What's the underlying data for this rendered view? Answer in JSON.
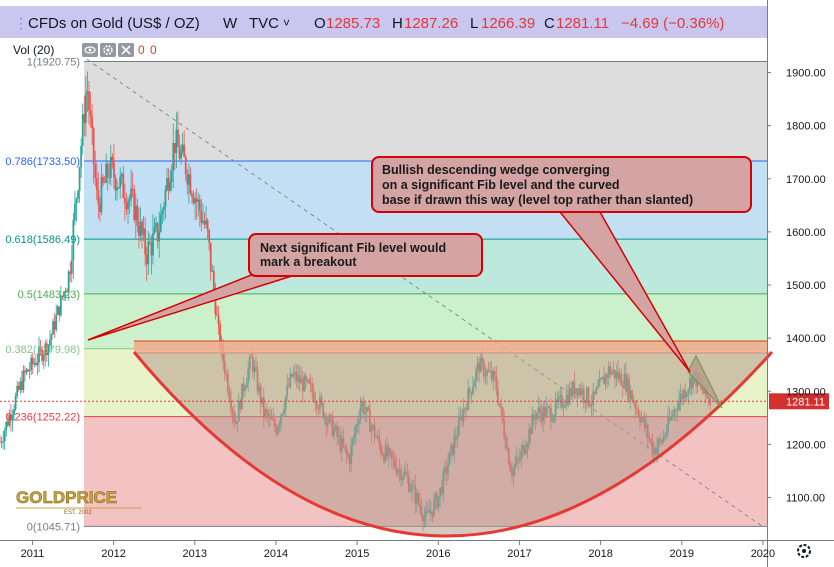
{
  "header": {
    "symbol": "CFDs on Gold (US$ / OZ)",
    "interval": "W",
    "source": "TVC",
    "source_chevron": "˅",
    "o_label": "O",
    "o_value": "1285.73",
    "h_label": "H",
    "h_value": "1287.26",
    "l_label": "L",
    "l_value": "1266.39",
    "c_label": "C",
    "c_value": "1281.11",
    "change": "−4.69 (−0.36%)",
    "volume_label": "Vol (20)",
    "volume_values": [
      "0",
      "0"
    ]
  },
  "icons": [
    "eye-icon",
    "gear-icon",
    "close-icon"
  ],
  "colors": {
    "header_band": "#c9c6f0",
    "down_candle": "#ef5350",
    "up_candle": "#26a69a",
    "wedge_line": "#e53935",
    "price_badge": "#d32f2f",
    "bowl": "#e53935",
    "resistance_band": "#f4a98c"
  },
  "annotations": {
    "note_1_lines": [
      "Bullish descending wedge converging",
      "on a significant Fib level and the curved",
      "base if drawn this way (level top rather than slanted)"
    ],
    "note_2_lines": [
      "Next significant Fib level would",
      "mark a breakout"
    ]
  },
  "logo": {
    "brand": "GOLDPRICE",
    "est": "EST. 2002"
  },
  "current_price_label": "1281.11",
  "chart_data": {
    "type": "candlestick",
    "title": "CFDs on Gold (US$ / OZ)",
    "interval": "W",
    "x_ticks": [
      "2011",
      "2012",
      "2013",
      "2014",
      "2015",
      "2016",
      "2017",
      "2018",
      "2019",
      "2020"
    ],
    "x_range": [
      2010.6,
      2020.05
    ],
    "y_ticks": [
      "1100.00",
      "1200.00",
      "1300.00",
      "1400.00",
      "1500.00",
      "1600.00",
      "1700.00",
      "1800.00",
      "1900.00"
    ],
    "y_range": [
      1020,
      1965
    ],
    "fib_levels": [
      {
        "ratio": "1",
        "price": 1920.75,
        "label": "1(1920.75)",
        "color": "#787b86"
      },
      {
        "ratio": "0.786",
        "price": 1733.5,
        "label": "0.786(1733.50)",
        "color": "#2962ff"
      },
      {
        "ratio": "0.618",
        "price": 1586.49,
        "label": "0.618(1586.49)",
        "color": "#009688"
      },
      {
        "ratio": "0.5",
        "price": 1483.23,
        "label": "0.5(1483.23)",
        "color": "#4caf50"
      },
      {
        "ratio": "0.382",
        "price": 1379.98,
        "label": "0.382(1379.98)",
        "color": "#81c784"
      },
      {
        "ratio": "0.236",
        "price": 1252.22,
        "label": "0.236(1252.22)",
        "color": "#f23645"
      },
      {
        "ratio": "0",
        "price": 1045.71,
        "label": "0(1045.71)",
        "color": "#787b86"
      }
    ],
    "fib_zone_colors": [
      "#d9d9d9",
      "#bcdcf2",
      "#b5e6d9",
      "#c5eec6",
      "#e6f2c4",
      "#f2bcbc"
    ],
    "last_price": 1281.11,
    "anchors": [
      [
        2010.6,
        1205
      ],
      [
        2010.9,
        1330
      ],
      [
        2011.2,
        1390
      ],
      [
        2011.45,
        1520
      ],
      [
        2011.67,
        1880
      ],
      [
        2011.8,
        1650
      ],
      [
        2011.95,
        1720
      ],
      [
        2012.25,
        1650
      ],
      [
        2012.4,
        1560
      ],
      [
        2012.55,
        1600
      ],
      [
        2012.75,
        1770
      ],
      [
        2012.9,
        1720
      ],
      [
        2013.0,
        1670
      ],
      [
        2013.15,
        1600
      ],
      [
        2013.3,
        1400
      ],
      [
        2013.5,
        1240
      ],
      [
        2013.6,
        1310
      ],
      [
        2013.7,
        1360
      ],
      [
        2013.85,
        1260
      ],
      [
        2014.0,
        1230
      ],
      [
        2014.2,
        1330
      ],
      [
        2014.45,
        1300
      ],
      [
        2014.7,
        1230
      ],
      [
        2014.9,
        1170
      ],
      [
        2015.05,
        1280
      ],
      [
        2015.3,
        1190
      ],
      [
        2015.6,
        1140
      ],
      [
        2015.85,
        1060
      ],
      [
        2016.0,
        1100
      ],
      [
        2016.3,
        1260
      ],
      [
        2016.5,
        1350
      ],
      [
        2016.7,
        1320
      ],
      [
        2016.9,
        1150
      ],
      [
        2017.0,
        1170
      ],
      [
        2017.2,
        1260
      ],
      [
        2017.4,
        1260
      ],
      [
        2017.7,
        1310
      ],
      [
        2017.9,
        1280
      ],
      [
        2018.1,
        1340
      ],
      [
        2018.3,
        1320
      ],
      [
        2018.5,
        1250
      ],
      [
        2018.65,
        1190
      ],
      [
        2018.75,
        1205
      ],
      [
        2018.95,
        1280
      ],
      [
        2019.15,
        1330
      ],
      [
        2019.3,
        1290
      ],
      [
        2019.35,
        1283
      ]
    ]
  }
}
